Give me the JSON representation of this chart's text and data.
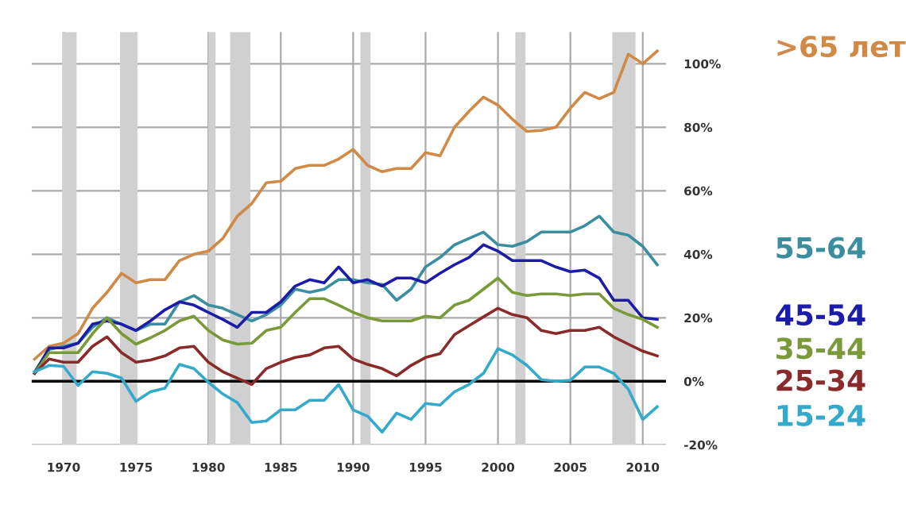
{
  "chart_data": {
    "type": "line",
    "x": [
      1968,
      1969,
      1970,
      1971,
      1972,
      1973,
      1974,
      1975,
      1976,
      1977,
      1978,
      1979,
      1980,
      1981,
      1982,
      1983,
      1984,
      1985,
      1986,
      1987,
      1988,
      1989,
      1990,
      1991,
      1992,
      1993,
      1994,
      1995,
      1996,
      1997,
      1998,
      1999,
      2000,
      2001,
      2002,
      2003,
      2004,
      2005,
      2006,
      2007,
      2008,
      2009,
      2010,
      2011
    ],
    "series": [
      {
        "name": ">65 лет",
        "color": "#d08a45",
        "values": [
          7,
          11,
          12,
          15,
          23,
          28,
          34,
          31,
          32,
          32,
          38,
          40,
          41,
          45,
          52,
          56,
          62.5,
          63,
          67,
          68,
          68,
          70,
          73,
          68,
          66,
          67,
          67,
          72,
          71,
          80,
          85,
          89.5,
          87,
          82.5,
          78.7,
          79,
          80,
          86,
          91,
          89,
          91,
          103,
          100,
          104
        ]
      },
      {
        "name": "55-64",
        "color": "#3a8ea0",
        "values": [
          3,
          10,
          11,
          12,
          17,
          20,
          18,
          16,
          18,
          18,
          25,
          27,
          24,
          23,
          21,
          19,
          21,
          24,
          29,
          28,
          29,
          32,
          32,
          31,
          30.5,
          25.5,
          29,
          36,
          39,
          43,
          45,
          47,
          43,
          42.5,
          44,
          47,
          47,
          47,
          49,
          52,
          47,
          46,
          42.5,
          36.7
        ]
      },
      {
        "name": "45-54",
        "color": "#1c1ca8",
        "values": [
          2.5,
          10.5,
          10.5,
          12,
          18,
          19,
          18,
          16,
          19,
          22.5,
          25,
          24,
          21.7,
          19.5,
          17,
          21.7,
          21.7,
          25,
          30,
          32,
          31,
          36,
          31,
          32,
          30,
          32.5,
          32.5,
          31,
          34,
          36.7,
          39,
          43,
          41,
          38,
          38,
          38,
          36,
          34.5,
          35,
          32.5,
          25.5,
          25.5,
          20,
          19.5
        ]
      },
      {
        "name": "35-44",
        "color": "#7a9a3a",
        "values": [
          2.5,
          9,
          9,
          9,
          15,
          20,
          15,
          11.7,
          13.7,
          16,
          19,
          20.5,
          16,
          13,
          11.7,
          12,
          16,
          17,
          21.7,
          26,
          26,
          24,
          21.7,
          20,
          19,
          19,
          19,
          20.5,
          20,
          24,
          25.5,
          29,
          32.5,
          28,
          27,
          27.5,
          27.5,
          27,
          27.5,
          27.5,
          23,
          21,
          19.5,
          17
        ]
      },
      {
        "name": "25-34",
        "color": "#8b2a2a",
        "values": [
          2.5,
          7,
          6,
          6,
          11,
          14,
          9,
          6,
          6.7,
          8,
          10.5,
          11,
          6,
          3,
          1,
          -1,
          4,
          6,
          7.5,
          8.3,
          10.5,
          11,
          7,
          5.3,
          4,
          1.7,
          5,
          7.5,
          8.7,
          14.7,
          17.5,
          20.3,
          23,
          21,
          20,
          16,
          15,
          16,
          16,
          17,
          14,
          11.7,
          9.5,
          8
        ]
      },
      {
        "name": "15-24",
        "color": "#33aacc",
        "values": [
          3,
          5,
          4.7,
          -1.3,
          3,
          2.5,
          1,
          -6.3,
          -3.3,
          -2.2,
          5.3,
          4,
          -0.3,
          -4,
          -6.7,
          -13,
          -12.5,
          -9,
          -9,
          -6,
          -6,
          -1,
          -9,
          -11,
          -16,
          -10,
          -12,
          -7,
          -7.5,
          -3.3,
          -1,
          2.5,
          10.3,
          8.3,
          5,
          0.5,
          0,
          0.3,
          4.5,
          4.5,
          2.5,
          -2.5,
          -12,
          -8
        ]
      }
    ],
    "xlim": [
      1967.8,
      2011.6
    ],
    "xticks": [
      1970,
      1975,
      1980,
      1985,
      1990,
      1995,
      2000,
      2005,
      2010
    ],
    "ylim": [
      -20,
      110
    ],
    "yticks": [
      {
        "value": -20,
        "label": "-20%"
      },
      {
        "value": 0,
        "label": "0%"
      },
      {
        "value": 20,
        "label": "20%"
      },
      {
        "value": 40,
        "label": "40%"
      },
      {
        "value": 60,
        "label": "60%"
      },
      {
        "value": 80,
        "label": "80%"
      },
      {
        "value": 100,
        "label": "100%"
      }
    ],
    "grid": true,
    "ref_lines": [
      {
        "axis": "y",
        "value": 0,
        "color": "#000000"
      }
    ],
    "bands": [
      {
        "axis": "x",
        "from": 1969.9,
        "to": 1970.9,
        "color": "#d0d0d0"
      },
      {
        "axis": "x",
        "from": 1973.9,
        "to": 1975.1,
        "color": "#d0d0d0"
      },
      {
        "axis": "x",
        "from": 1980.0,
        "to": 1980.5,
        "color": "#d0d0d0"
      },
      {
        "axis": "x",
        "from": 1981.5,
        "to": 1982.9,
        "color": "#d0d0d0"
      },
      {
        "axis": "x",
        "from": 1990.5,
        "to": 1991.2,
        "color": "#d0d0d0"
      },
      {
        "axis": "x",
        "from": 2001.2,
        "to": 2001.9,
        "color": "#d0d0d0"
      },
      {
        "axis": "x",
        "from": 2007.9,
        "to": 2009.5,
        "color": "#d0d0d0"
      }
    ]
  }
}
